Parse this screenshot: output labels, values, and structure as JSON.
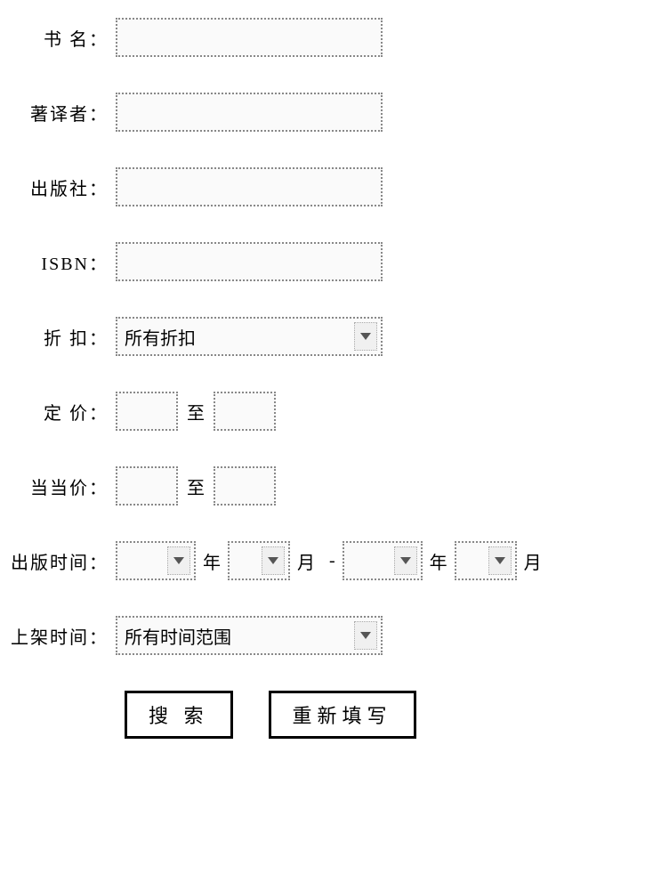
{
  "labels": {
    "book_name": "书 名：",
    "author": "著译者：",
    "publisher": "出版社：",
    "isbn": "ISBN：",
    "discount": "折 扣：",
    "list_price": "定 价：",
    "dd_price": "当当价：",
    "pub_date": "出版时间：",
    "shelf_date": "上架时间：",
    "to": "至",
    "year": "年",
    "month": "月",
    "dash": "-"
  },
  "values": {
    "book_name": "",
    "author": "",
    "publisher": "",
    "isbn": "",
    "discount_selected": "所有折扣",
    "list_price_from": "",
    "list_price_to": "",
    "dd_price_from": "",
    "dd_price_to": "",
    "pub_year_from": "",
    "pub_month_from": "",
    "pub_year_to": "",
    "pub_month_to": "",
    "shelf_date_selected": "所有时间范围"
  },
  "buttons": {
    "search": "搜 索",
    "reset": "重新填写"
  },
  "colors": {
    "border": "#888888",
    "background": "#ffffff",
    "input_bg": "#fafafa",
    "text": "#000000"
  }
}
